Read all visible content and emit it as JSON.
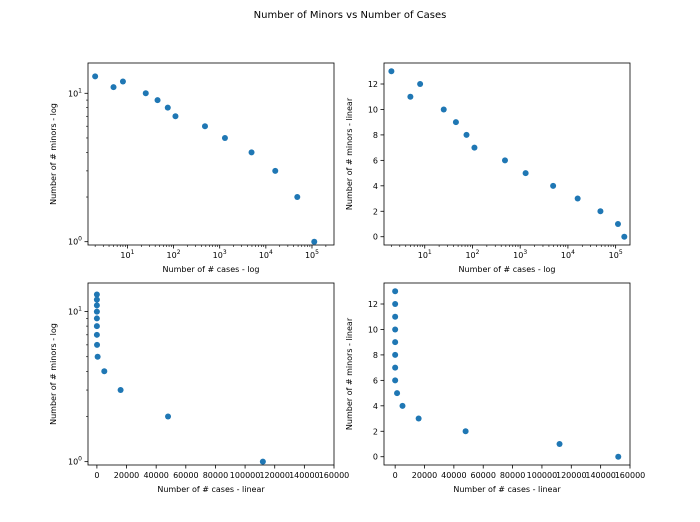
{
  "figure": {
    "title": "Number of Minors  vs Number of Cases"
  },
  "chart_data": [
    {
      "type": "scatter",
      "xlabel": "Number of # cases - log",
      "ylabel": "Number of # minors - log",
      "xscale": "log",
      "yscale": "log",
      "xlim": [
        1.4,
        300000
      ],
      "ylim": [
        0.95,
        16
      ],
      "xticks": [
        {
          "v": 10,
          "b": "10",
          "e": "1"
        },
        {
          "v": 100,
          "b": "10",
          "e": "2"
        },
        {
          "v": 1000,
          "b": "10",
          "e": "3"
        },
        {
          "v": 10000,
          "b": "10",
          "e": "4"
        },
        {
          "v": 100000,
          "b": "10",
          "e": "5"
        }
      ],
      "yticks": [
        {
          "v": 1,
          "b": "10",
          "e": "0"
        },
        {
          "v": 10,
          "b": "10",
          "e": "1"
        }
      ],
      "grid": false,
      "marker_color": "#1f77b4",
      "x": [
        2,
        5,
        8,
        25,
        45,
        75,
        110,
        480,
        1300,
        4900,
        16000,
        48000,
        112000
      ],
      "y": [
        13,
        11,
        12,
        10,
        9,
        8,
        7,
        6,
        5,
        4,
        3,
        2,
        1
      ]
    },
    {
      "type": "scatter",
      "xlabel": "Number of # cases - log",
      "ylabel": "Number of # minors - linear",
      "xscale": "log",
      "yscale": "linear",
      "xlim": [
        1.4,
        200000
      ],
      "ylim": [
        -0.65,
        13.65
      ],
      "xticks": [
        {
          "v": 10,
          "b": "10",
          "e": "1"
        },
        {
          "v": 100,
          "b": "10",
          "e": "2"
        },
        {
          "v": 1000,
          "b": "10",
          "e": "3"
        },
        {
          "v": 10000,
          "b": "10",
          "e": "4"
        },
        {
          "v": 100000,
          "b": "10",
          "e": "5"
        }
      ],
      "yticks": [
        {
          "v": 0,
          "t": "0"
        },
        {
          "v": 2,
          "t": "2"
        },
        {
          "v": 4,
          "t": "4"
        },
        {
          "v": 6,
          "t": "6"
        },
        {
          "v": 8,
          "t": "8"
        },
        {
          "v": 10,
          "t": "10"
        },
        {
          "v": 12,
          "t": "12"
        }
      ],
      "grid": false,
      "marker_color": "#1f77b4",
      "x": [
        2,
        5,
        8,
        25,
        45,
        75,
        110,
        480,
        1300,
        4900,
        16000,
        48000,
        112000,
        152000
      ],
      "y": [
        13,
        11,
        12,
        10,
        9,
        8,
        7,
        6,
        5,
        4,
        3,
        2,
        1,
        0
      ]
    },
    {
      "type": "scatter",
      "xlabel": "Number of # cases - linear",
      "ylabel": "Number of # minors - log",
      "xscale": "linear",
      "yscale": "log",
      "xlim": [
        -6000,
        160000
      ],
      "ylim": [
        0.95,
        15.5
      ],
      "xticks": [
        {
          "v": 0,
          "t": "0"
        },
        {
          "v": 20000,
          "t": "20000"
        },
        {
          "v": 40000,
          "t": "40000"
        },
        {
          "v": 60000,
          "t": "60000"
        },
        {
          "v": 80000,
          "t": "80000"
        },
        {
          "v": 100000,
          "t": "100000"
        },
        {
          "v": 120000,
          "t": "120000"
        },
        {
          "v": 140000,
          "t": "140000"
        },
        {
          "v": 160000,
          "t": "160000"
        }
      ],
      "yticks": [
        {
          "v": 1,
          "b": "10",
          "e": "0"
        },
        {
          "v": 10,
          "b": "10",
          "e": "1"
        }
      ],
      "grid": false,
      "marker_color": "#1f77b4",
      "x": [
        0,
        0,
        0,
        0,
        0,
        0,
        0,
        100,
        500,
        5000,
        16000,
        48000,
        112000
      ],
      "y": [
        13,
        12,
        11,
        10,
        9,
        8,
        7,
        6,
        5,
        4,
        3,
        2,
        1
      ]
    },
    {
      "type": "scatter",
      "xlabel": "Number of # cases - linear",
      "ylabel": "Number of # minors - linear",
      "xscale": "linear",
      "yscale": "linear",
      "xlim": [
        -7600,
        160000
      ],
      "ylim": [
        -0.65,
        13.65
      ],
      "xticks": [
        {
          "v": 0,
          "t": "0"
        },
        {
          "v": 20000,
          "t": "20000"
        },
        {
          "v": 40000,
          "t": "40000"
        },
        {
          "v": 60000,
          "t": "60000"
        },
        {
          "v": 80000,
          "t": "80000"
        },
        {
          "v": 100000,
          "t": "100000"
        },
        {
          "v": 120000,
          "t": "120000"
        },
        {
          "v": 140000,
          "t": "140000"
        },
        {
          "v": 160000,
          "t": "160000"
        }
      ],
      "yticks": [
        {
          "v": 0,
          "t": "0"
        },
        {
          "v": 2,
          "t": "2"
        },
        {
          "v": 4,
          "t": "4"
        },
        {
          "v": 6,
          "t": "6"
        },
        {
          "v": 8,
          "t": "8"
        },
        {
          "v": 10,
          "t": "10"
        },
        {
          "v": 12,
          "t": "12"
        }
      ],
      "grid": false,
      "marker_color": "#1f77b4",
      "x": [
        0,
        0,
        0,
        0,
        0,
        0,
        0,
        0,
        1300,
        5000,
        16000,
        48000,
        112000,
        152000
      ],
      "y": [
        13,
        12,
        11,
        10,
        9,
        8,
        7,
        6,
        5,
        4,
        3,
        2,
        1,
        0
      ]
    }
  ]
}
